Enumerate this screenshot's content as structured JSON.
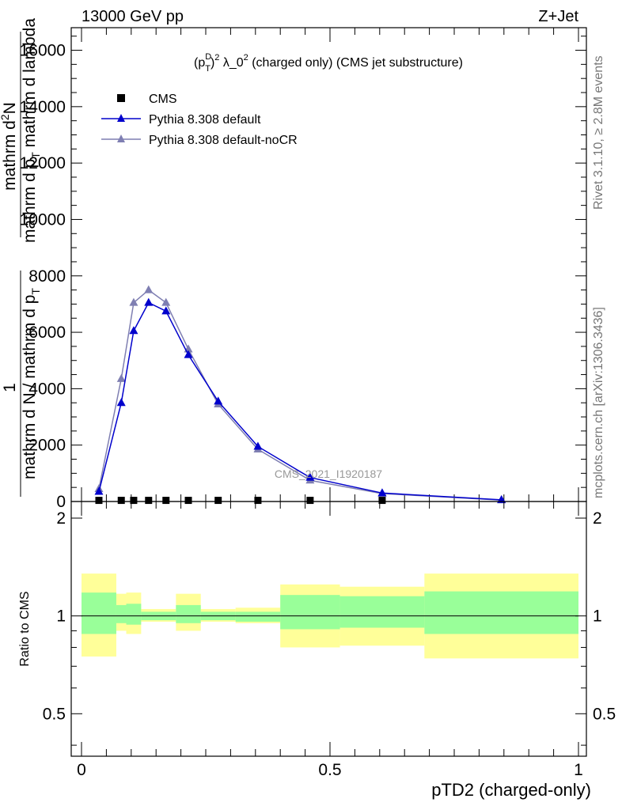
{
  "header": {
    "left_title": "13000 GeV pp",
    "right_title": "Z+Jet"
  },
  "side_text": {
    "rivet": "Rivet 3.1.10, ≥ 2.8M events",
    "mcplots": "mcplots.cern.ch [arXiv:1306.3436]"
  },
  "chart_data": [
    {
      "type": "line",
      "panel": "main",
      "title": "(p_T^D)^2 λ_0^2 (charged only) (CMS jet substructure)",
      "title_parts": {
        "open": "(p",
        "sup_d": "D",
        "sub_t": "T",
        "close": ")",
        "sup_2a": "2",
        "lambda": " λ_0",
        "sup_2b": "2",
        "tail": " (charged only) (CMS jet substructure)"
      },
      "watermark": "CMS_2021_I1920187",
      "ylabel_numerator": "mathrm d^2N",
      "ylabel_num_parts": {
        "base": "mathrm d",
        "sup": "2",
        "end": "N"
      },
      "ylabel_denominator": "mathrm d p_T mathrm d lambda",
      "ylabel_den_parts": {
        "a": "mathrm d p",
        "sub": "T",
        "b": " mathrm d lambda"
      },
      "ylabel_prefix_num": "1",
      "ylabel_prefix_den": "mathrm d N / mathrm d p_T",
      "ylabel_prefix_den_parts": {
        "a": "mathrm d N / mathrm d p",
        "sub": "T"
      },
      "xlim": [
        0,
        1
      ],
      "ylim": [
        0,
        16800
      ],
      "yticks": [
        0,
        2000,
        4000,
        6000,
        8000,
        10000,
        12000,
        14000,
        16000
      ],
      "ytick_labels": [
        "0",
        "2000",
        "4000",
        "6000",
        "8000",
        "10000",
        "12000",
        "14000",
        "16000"
      ],
      "legend_position": "top-left",
      "series": [
        {
          "name": "CMS",
          "marker": "square",
          "color": "#000000",
          "x": [
            0.035,
            0.08,
            0.105,
            0.135,
            0.17,
            0.215,
            0.275,
            0.355,
            0.46,
            0.605
          ],
          "y": [
            40,
            40,
            40,
            40,
            40,
            40,
            40,
            40,
            40,
            40
          ]
        },
        {
          "name": "Pythia 8.308 default",
          "marker": "triangle",
          "color": "#0000cc",
          "x": [
            0.035,
            0.08,
            0.105,
            0.135,
            0.17,
            0.215,
            0.275,
            0.355,
            0.46,
            0.605,
            0.845
          ],
          "y": [
            350,
            3500,
            6050,
            7050,
            6750,
            5200,
            3550,
            1950,
            850,
            300,
            60
          ]
        },
        {
          "name": "Pythia 8.308 default-noCR",
          "marker": "triangle",
          "color": "#7f7fb2",
          "x": [
            0.035,
            0.08,
            0.105,
            0.135,
            0.17,
            0.215,
            0.275,
            0.355,
            0.46,
            0.605,
            0.845
          ],
          "y": [
            450,
            4350,
            7050,
            7500,
            7050,
            5400,
            3450,
            1850,
            750,
            280,
            50
          ]
        }
      ]
    },
    {
      "type": "area",
      "panel": "ratio",
      "ylabel": "Ratio to CMS",
      "xlabel": "pTD2 (charged-only)",
      "xlim": [
        0,
        1
      ],
      "ylim": [
        0.37,
        2.25
      ],
      "xticks": [
        0,
        0.5,
        1
      ],
      "xtick_labels": [
        "0",
        "0.5",
        "1"
      ],
      "yticks": [
        0.5,
        1,
        2
      ],
      "ytick_labels": [
        "0.5",
        "1",
        "2"
      ],
      "reference_line": 1,
      "bins": [
        {
          "x0": 0.0,
          "x1": 0.07,
          "yellow": [
            0.75,
            1.35
          ],
          "green": [
            0.88,
            1.18
          ]
        },
        {
          "x0": 0.07,
          "x1": 0.09,
          "yellow": [
            0.9,
            1.17
          ],
          "green": [
            0.95,
            1.08
          ]
        },
        {
          "x0": 0.09,
          "x1": 0.12,
          "yellow": [
            0.88,
            1.18
          ],
          "green": [
            0.94,
            1.09
          ]
        },
        {
          "x0": 0.12,
          "x1": 0.19,
          "yellow": [
            0.96,
            1.05
          ],
          "green": [
            0.97,
            1.03
          ]
        },
        {
          "x0": 0.19,
          "x1": 0.24,
          "yellow": [
            0.9,
            1.17
          ],
          "green": [
            0.95,
            1.08
          ]
        },
        {
          "x0": 0.24,
          "x1": 0.31,
          "yellow": [
            0.96,
            1.05
          ],
          "green": [
            0.97,
            1.03
          ]
        },
        {
          "x0": 0.31,
          "x1": 0.4,
          "yellow": [
            0.95,
            1.06
          ],
          "green": [
            0.96,
            1.03
          ]
        },
        {
          "x0": 0.4,
          "x1": 0.52,
          "yellow": [
            0.8,
            1.25
          ],
          "green": [
            0.91,
            1.16
          ]
        },
        {
          "x0": 0.52,
          "x1": 0.69,
          "yellow": [
            0.81,
            1.23
          ],
          "green": [
            0.92,
            1.15
          ]
        },
        {
          "x0": 0.69,
          "x1": 1.0,
          "yellow": [
            0.74,
            1.35
          ],
          "green": [
            0.88,
            1.19
          ]
        }
      ]
    }
  ],
  "colors": {
    "yellow_band": "#ffff99",
    "green_band": "#99ff99",
    "axis": "#000000"
  }
}
